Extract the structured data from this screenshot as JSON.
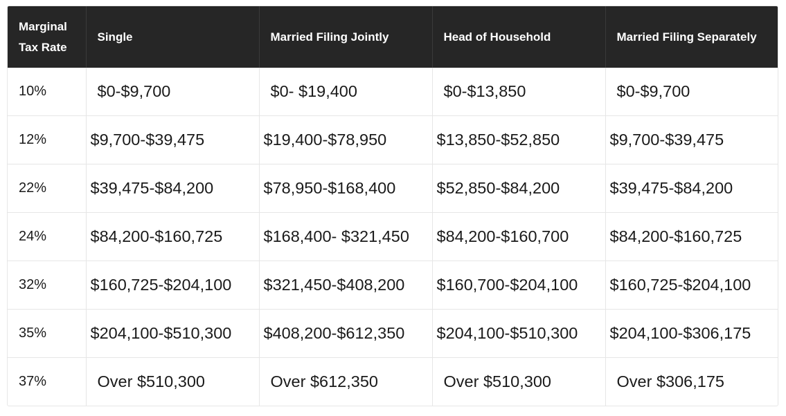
{
  "headers": [
    "Marginal Tax Rate",
    "Single",
    "Married Filing Jointly",
    "Head of Household",
    "Married Filing Separately"
  ],
  "rows": [
    {
      "rate": "10%",
      "single": "$0-$9,700",
      "joint": "$0- $19,400",
      "hoh": "$0-$13,850",
      "separate": "$0-$9,700"
    },
    {
      "rate": "12%",
      "single": "$9,700-$39,475",
      "joint": "$19,400-$78,950",
      "hoh": "$13,850-$52,850",
      "separate": "$9,700-$39,475"
    },
    {
      "rate": "22%",
      "single": "$39,475-$84,200",
      "joint": "$78,950-$168,400",
      "hoh": "$52,850-$84,200",
      "separate": "$39,475-$84,200"
    },
    {
      "rate": "24%",
      "single": "$84,200-$160,725",
      "joint": "$168,400- $321,450",
      "hoh": "$84,200-$160,700",
      "separate": "$84,200-$160,725"
    },
    {
      "rate": "32%",
      "single": "$160,725-$204,100",
      "joint": "$321,450-$408,200",
      "hoh": "$160,700-$204,100",
      "separate": "$160,725-$204,100"
    },
    {
      "rate": "35%",
      "single": "$204,100-$510,300",
      "joint": "$408,200-$612,350",
      "hoh": "$204,100-$510,300",
      "separate": "$204,100-$306,175"
    },
    {
      "rate": "37%",
      "single": "Over $510,300",
      "joint": "Over $612,350",
      "hoh": "Over $510,300",
      "separate": "Over $306,175"
    }
  ],
  "colors": {
    "header_bg": "#262626",
    "header_text": "#ffffff",
    "border": "#e6e6e6",
    "body_text": "#1a1a1a"
  }
}
